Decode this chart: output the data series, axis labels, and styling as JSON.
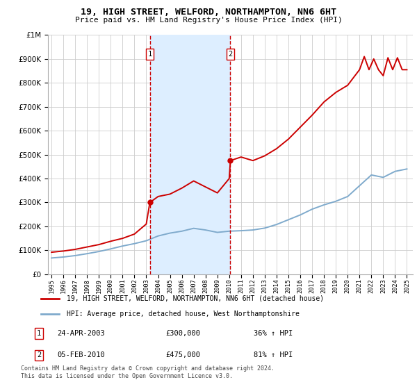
{
  "title": "19, HIGH STREET, WELFORD, NORTHAMPTON, NN6 6HT",
  "subtitle": "Price paid vs. HM Land Registry's House Price Index (HPI)",
  "legend_line1": "19, HIGH STREET, WELFORD, NORTHAMPTON, NN6 6HT (detached house)",
  "legend_line2": "HPI: Average price, detached house, West Northamptonshire",
  "footnote": "Contains HM Land Registry data © Crown copyright and database right 2024.\nThis data is licensed under the Open Government Licence v3.0.",
  "sale1_date": "24-APR-2003",
  "sale1_price": "£300,000",
  "sale1_hpi": "36% ↑ HPI",
  "sale2_date": "05-FEB-2010",
  "sale2_price": "£475,000",
  "sale2_hpi": "81% ↑ HPI",
  "red_color": "#cc0000",
  "blue_color": "#7faacc",
  "shade_color": "#ddeeff",
  "ylim": [
    0,
    1000000
  ],
  "sale1_year": 2003.3,
  "sale2_year": 2010.1,
  "hpi_years": [
    1995,
    1996,
    1997,
    1998,
    1999,
    2000,
    2001,
    2002,
    2003,
    2004,
    2005,
    2006,
    2007,
    2008,
    2009,
    2010,
    2011,
    2012,
    2013,
    2014,
    2015,
    2016,
    2017,
    2018,
    2019,
    2020,
    2021,
    2022,
    2023,
    2024,
    2025
  ],
  "hpi_values": [
    68000,
    72000,
    78000,
    86000,
    95000,
    106000,
    118000,
    128000,
    140000,
    160000,
    172000,
    180000,
    192000,
    185000,
    175000,
    180000,
    182000,
    185000,
    193000,
    208000,
    228000,
    248000,
    272000,
    290000,
    305000,
    325000,
    370000,
    415000,
    405000,
    430000,
    440000
  ],
  "red_years": [
    1995,
    1996,
    1997,
    1998,
    1999,
    2000,
    2001,
    2002,
    2003.0,
    2003.3,
    2004,
    2005,
    2006,
    2007,
    2008,
    2009,
    2010.0,
    2010.1,
    2011,
    2012,
    2013,
    2014,
    2015,
    2016,
    2017,
    2018,
    2019,
    2020,
    2021,
    2021.4,
    2021.8,
    2022.2,
    2022.6,
    2023.0,
    2023.4,
    2023.8,
    2024.2,
    2024.6,
    2025
  ],
  "red_values": [
    92000,
    97000,
    104000,
    114000,
    124000,
    138000,
    150000,
    168000,
    210000,
    300000,
    325000,
    335000,
    360000,
    390000,
    365000,
    340000,
    400000,
    475000,
    490000,
    475000,
    495000,
    525000,
    565000,
    615000,
    665000,
    720000,
    760000,
    790000,
    855000,
    910000,
    855000,
    900000,
    855000,
    830000,
    905000,
    855000,
    905000,
    855000,
    855000
  ]
}
